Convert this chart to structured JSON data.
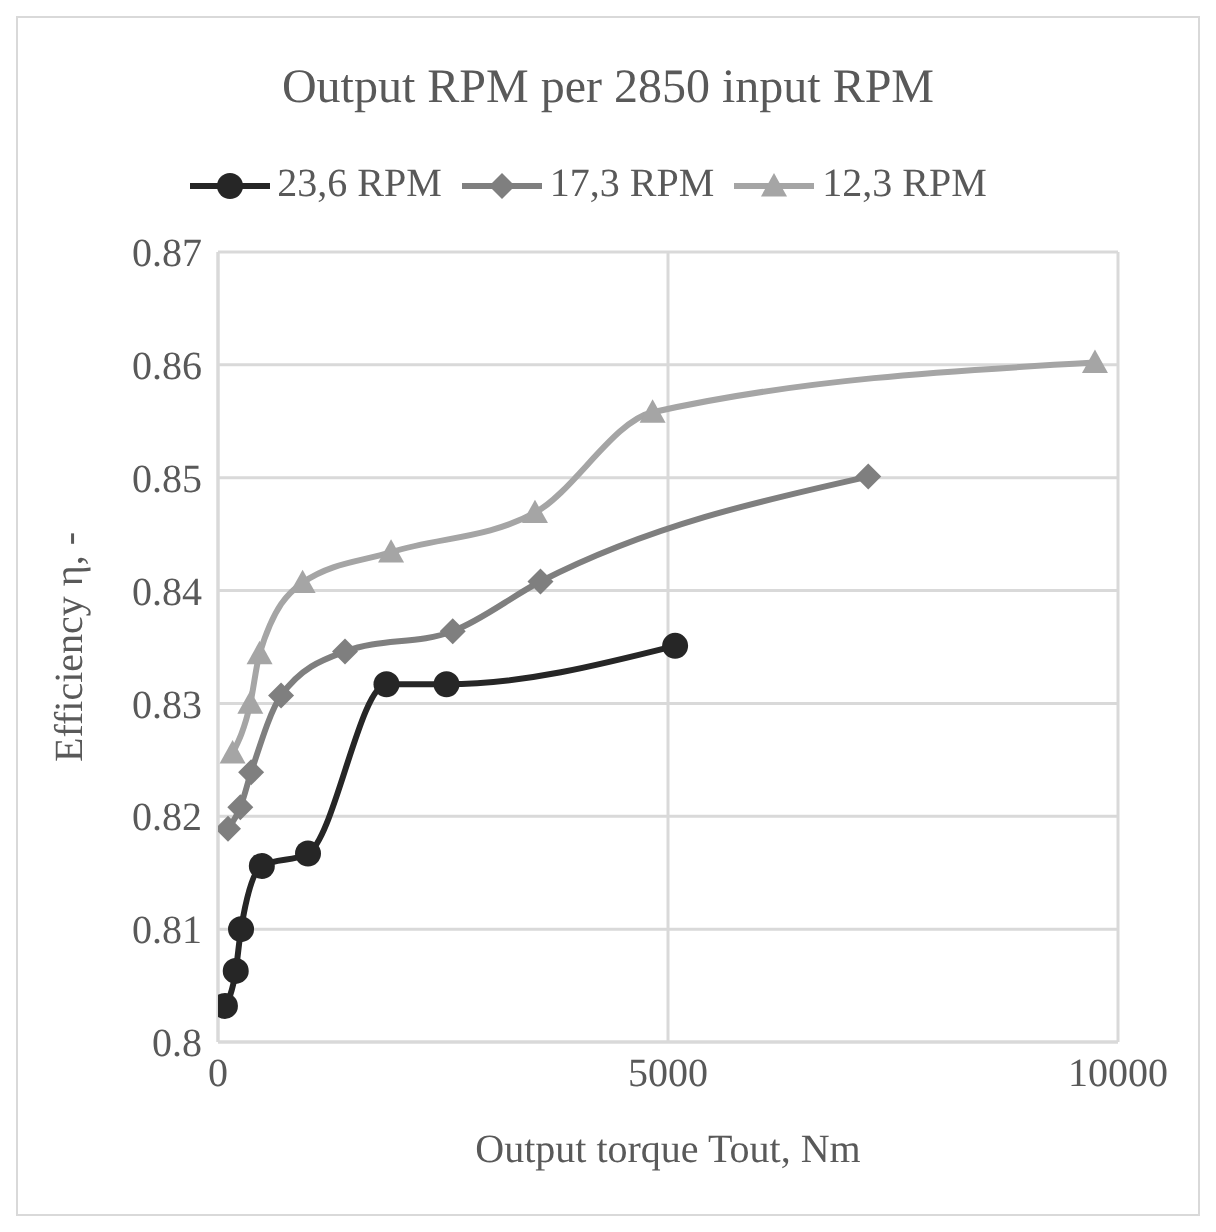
{
  "chart_data": {
    "type": "line",
    "title": "Output RPM per 2850 input RPM",
    "xlabel": "Output torque Tout, Nm",
    "ylabel": "Efficiency η, -",
    "series": [
      {
        "name": "23,6 RPM",
        "color": "#262626",
        "marker": "circle",
        "x": [
          77,
          197,
          256,
          487,
          1000,
          1872,
          2539,
          5079
        ],
        "values": [
          0.8032,
          0.8063,
          0.81,
          0.8156,
          0.8167,
          0.8317,
          0.8317,
          0.8351
        ]
      },
      {
        "name": "17,3 RPM",
        "color": "#7f7f7f",
        "marker": "diamond",
        "x": [
          111,
          248,
          368,
          701,
          1411,
          2608,
          3583,
          7225
        ],
        "values": [
          0.8189,
          0.8208,
          0.8239,
          0.8307,
          0.8346,
          0.8364,
          0.8408,
          0.8501
        ]
      },
      {
        "name": "12,3 RPM",
        "color": "#a5a5a5",
        "marker": "triangle",
        "x": [
          162,
          359,
          462,
          940,
          1923,
          3522,
          4829,
          9744
        ],
        "values": [
          0.8256,
          0.83,
          0.8344,
          0.8407,
          0.8434,
          0.8469,
          0.8558,
          0.8602
        ]
      }
    ],
    "xlim": [
      0,
      10000
    ],
    "xticks": [
      0,
      5000,
      10000
    ],
    "ylim": [
      0.8,
      0.87
    ],
    "yticks": [
      0.8,
      0.81,
      0.82,
      0.83,
      0.84,
      0.85,
      0.86,
      0.87
    ],
    "grid": true,
    "legend": "top",
    "line_style": "solid"
  }
}
